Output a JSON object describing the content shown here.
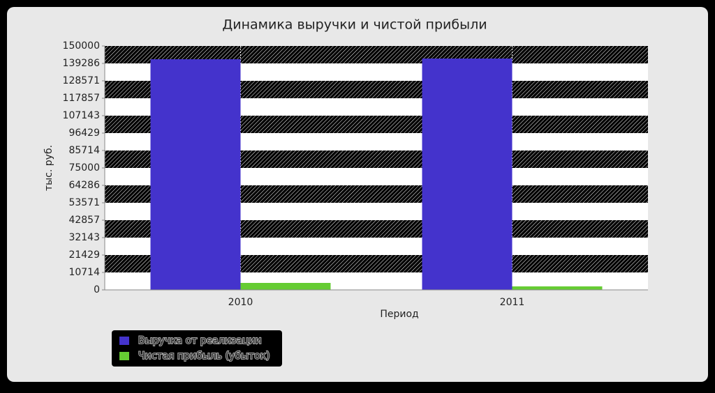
{
  "chart_data": {
    "type": "bar",
    "title": "Динамика выручки и чистой прибыли",
    "x_label": "Период",
    "y_label": "тыс. руб.",
    "categories": [
      "2010",
      "2011"
    ],
    "series": [
      {
        "name": "Выручка от реализации",
        "color": "#4433cc",
        "values": [
          141857,
          142286
        ]
      },
      {
        "name": "Чистая прибыль (убыток)",
        "color": "#66cc33",
        "values": [
          4286,
          2143
        ]
      }
    ],
    "ylim": [
      0,
      150000
    ],
    "yticks": [
      0,
      10714,
      21429,
      32143,
      42857,
      53571,
      64286,
      75000,
      85714,
      96429,
      107143,
      117857,
      128571,
      139286,
      150000
    ],
    "grid": true,
    "legend": "bottom-left"
  }
}
